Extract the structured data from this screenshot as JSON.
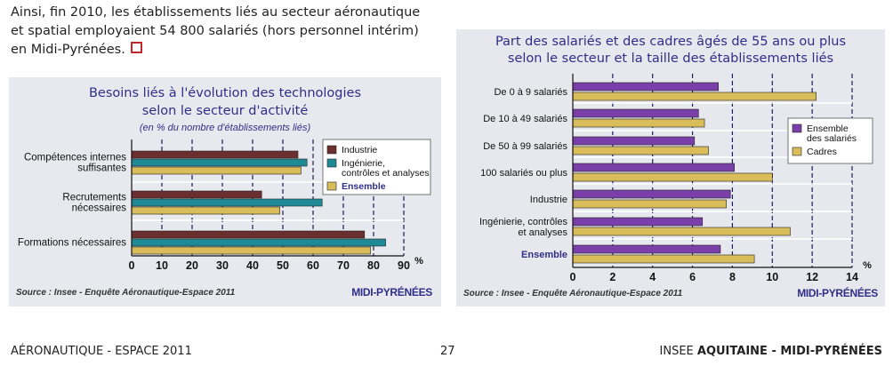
{
  "intro": {
    "lines": [
      "Ainsi, fin 2010, les établissements liés au secteur aéronautique",
      "et spatial employaient 54 800 salariés (hors personnel intérim)",
      "en Midi-Pyrénées."
    ]
  },
  "left_chart": {
    "title_line1": "Besoins liés à l'évolution des technologies",
    "title_line2": "selon le secteur d'activité",
    "subtitle": "(en % du nombre d'établissements liés)",
    "source": "Source : Insee - Enquête Aéronautique-Espace 2011",
    "region": "MIDI-PYRÉNÉES",
    "unit": "%"
  },
  "right_chart": {
    "title_line1": "Part des salariés et des cadres âgés de 55 ans ou plus",
    "title_line2": "selon le secteur et la taille des établissements liés",
    "source": "Source : Insee - Enquête Aéronautique-Espace 2011",
    "region": "MIDI-PYRÉNÉES",
    "unit": "%"
  },
  "footer": {
    "left": "AÉRONAUTIQUE - ESPACE 2011",
    "page": "27",
    "right_prefix": "INSEE ",
    "right_bold": "AQUITAINE - MIDI-PYRÉNÉES"
  },
  "chart_data": [
    {
      "type": "bar",
      "orientation": "horizontal",
      "categories": [
        [
          "Compétences internes",
          "suffisantes"
        ],
        [
          "Recrutements",
          "nécessaires"
        ],
        [
          "Formations nécessaires"
        ]
      ],
      "series": [
        {
          "name": "Industrie",
          "color": "#6b2f2f",
          "values": [
            55,
            43,
            77
          ]
        },
        {
          "name": "Ingénierie, contrôles et analyses",
          "color": "#1f8a96",
          "values": [
            58,
            63,
            84
          ]
        },
        {
          "name": "Ensemble",
          "color": "#d8bd5a",
          "values": [
            56,
            49,
            79
          ]
        }
      ],
      "legend": [
        {
          "lines": [
            "Industrie"
          ],
          "color": "#6b2f2f",
          "style": "normal"
        },
        {
          "lines": [
            "Ingénierie,",
            "contrôles et analyses"
          ],
          "color": "#1f8a96",
          "style": "normal"
        },
        {
          "lines": [
            "Ensemble"
          ],
          "color": "#d8bd5a",
          "style": "bold"
        }
      ],
      "xlim": [
        0,
        90
      ],
      "xticks": [
        0,
        10,
        20,
        30,
        40,
        50,
        60,
        70,
        80,
        90
      ],
      "grid": true,
      "legend_position": "top-right"
    },
    {
      "type": "bar",
      "orientation": "horizontal",
      "categories": [
        [
          "De 0 à 9 salariés"
        ],
        [
          "De 10 à 49 salariés"
        ],
        [
          "De 50 à 99 salariés"
        ],
        [
          "100 salariés ou plus"
        ],
        [
          "Industrie"
        ],
        [
          "Ingénierie, contrôles",
          "et analyses"
        ],
        [
          "Ensemble"
        ]
      ],
      "series": [
        {
          "name": "Ensemble des salariés",
          "color": "#7a3fa8",
          "values": [
            7.3,
            6.3,
            6.1,
            8.1,
            7.9,
            6.5,
            7.4
          ]
        },
        {
          "name": "Cadres",
          "color": "#d8bd5a",
          "values": [
            12.2,
            6.6,
            6.8,
            10.0,
            7.7,
            10.9,
            9.1
          ]
        }
      ],
      "legend": [
        {
          "lines": [
            "Ensemble",
            "des salariés"
          ],
          "color": "#7a3fa8",
          "style": "normal"
        },
        {
          "lines": [
            "Cadres"
          ],
          "color": "#d8bd5a",
          "style": "normal"
        }
      ],
      "xlim": [
        0,
        14
      ],
      "xticks": [
        0,
        2,
        4,
        6,
        8,
        10,
        12,
        14
      ],
      "grid": true,
      "legend_position": "right"
    }
  ]
}
